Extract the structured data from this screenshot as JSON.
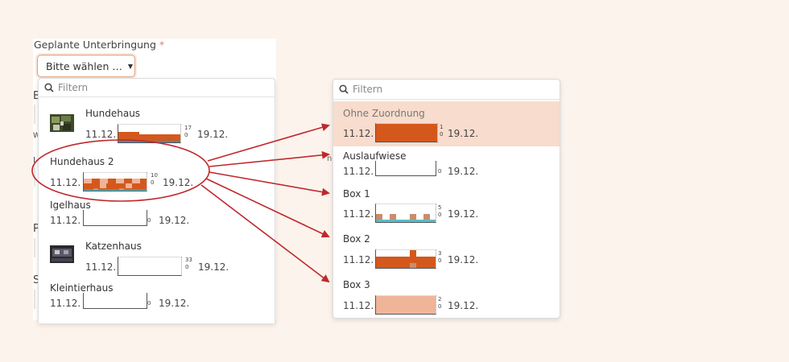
{
  "form": {
    "field_label": "Geplante Unterbringung",
    "required_marker": "*",
    "select_value": "Bitte wählen …",
    "side_chars": [
      "B",
      "W",
      "I",
      "P",
      "S"
    ]
  },
  "left_dropdown": {
    "filter_placeholder": "Filtern",
    "items": [
      {
        "name": "Hundehaus",
        "start": "11.12.",
        "end": "19.12.",
        "max": "17",
        "min": "0",
        "occupancy": 0.6
      },
      {
        "name": "Hundehaus 2",
        "start": "11.12.",
        "end": "19.12.",
        "max": "10",
        "min": "0"
      },
      {
        "name": "Igelhaus",
        "start": "11.12.",
        "end": "19.12.",
        "max": "",
        "min": "0"
      },
      {
        "name": "Katzenhaus",
        "start": "11.12.",
        "end": "19.12.",
        "max": "33",
        "min": "0"
      },
      {
        "name": "Kleintierhaus",
        "start": "11.12.",
        "end": "19.12.",
        "max": "",
        "min": "0"
      }
    ]
  },
  "right_dropdown": {
    "filter_placeholder": "Filtern",
    "items": [
      {
        "name": "Ohne Zuordnung",
        "start": "11.12.",
        "end": "19.12.",
        "max": "1",
        "min": "0",
        "occupancy": 1.0
      },
      {
        "name": "Auslaufwiese",
        "start": "11.12.",
        "end": "19.12.",
        "max": "",
        "min": "0",
        "occupancy": 0
      },
      {
        "name": "Box 1",
        "start": "11.12.",
        "end": "19.12.",
        "max": "5",
        "min": "0"
      },
      {
        "name": "Box 2",
        "start": "11.12.",
        "end": "19.12.",
        "max": "3",
        "min": "0"
      },
      {
        "name": "Box 3",
        "start": "11.12.",
        "end": "19.12.",
        "max": "2",
        "min": "0",
        "occupancy": 1.0
      }
    ]
  },
  "colors": {
    "occupied_dark": "#d4581c",
    "occupied_light": "#f0b499",
    "occupied_tan": "#c98d6c",
    "free_teal": "#5bbcc4",
    "highlight": "#f8dccd",
    "annotation_red": "#c0282d"
  }
}
